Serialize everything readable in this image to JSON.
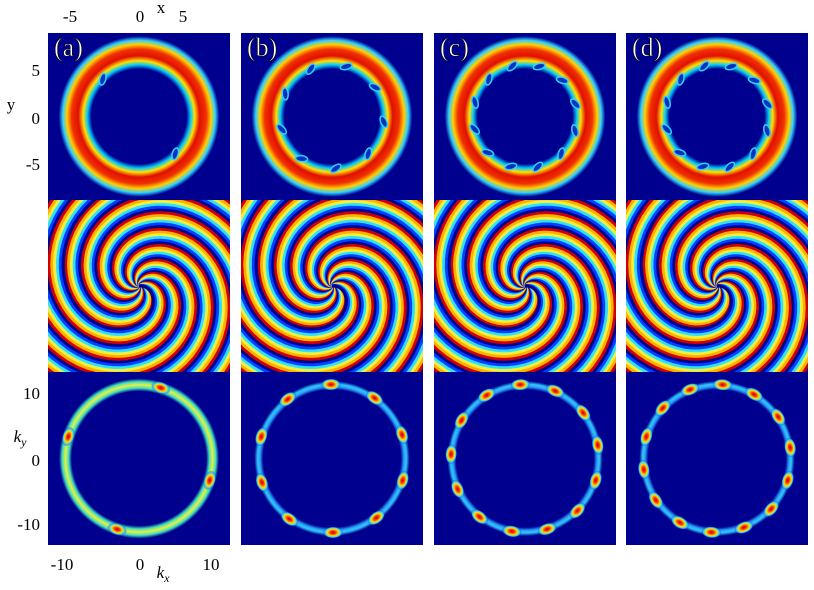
{
  "panels": [
    {
      "label": "(a)"
    },
    {
      "label": "(b)"
    },
    {
      "label": "(c)"
    },
    {
      "label": "(d)"
    }
  ],
  "axes": {
    "top": {
      "label": "x",
      "ticks": [
        "-5",
        "0",
        "5"
      ]
    },
    "left_top": {
      "label": "y",
      "ticks": [
        "5",
        "0",
        "-5"
      ]
    },
    "left_bottom": {
      "label": {
        "base": "k",
        "sub": "y"
      },
      "ticks": [
        "10",
        "0",
        "-10"
      ]
    },
    "bottom": {
      "label": {
        "base": "k",
        "sub": "x"
      },
      "ticks": [
        "-10",
        "0",
        "10"
      ]
    }
  }
}
